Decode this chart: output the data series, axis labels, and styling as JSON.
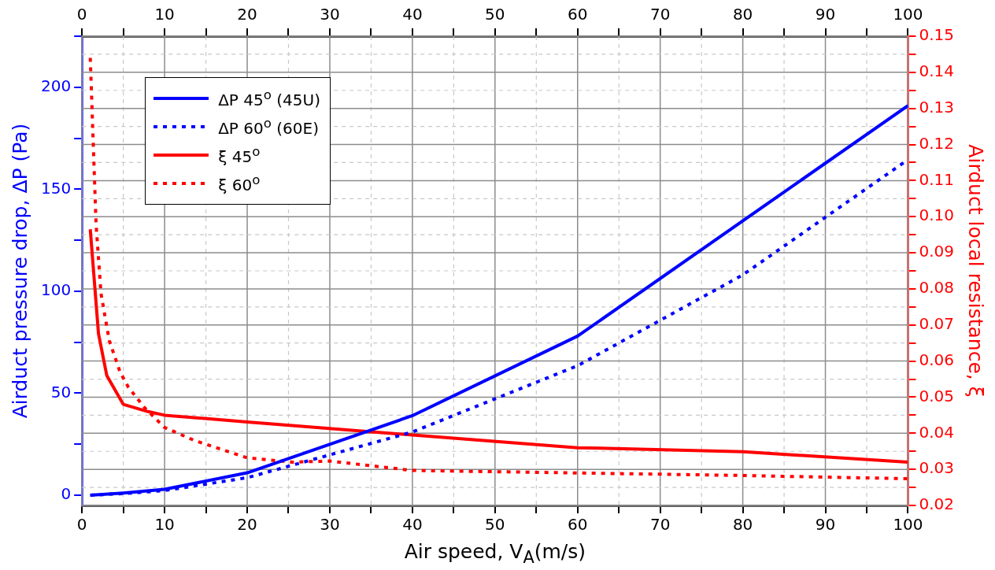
{
  "chart_data": {
    "type": "line",
    "xlabel": "Air speed, V$_{A}$(m/s)",
    "ylabel": "Airduct pressure drop, ΔP (Pa)",
    "y2label": "Airduct local resistance, ξ",
    "xlim": [
      0,
      100
    ],
    "xticks": [
      0,
      {
        "value": 5,
        "label": null
      },
      10,
      {
        "value": 15,
        "label": null
      },
      20,
      {
        "value": 25,
        "label": null
      },
      30,
      {
        "value": 35,
        "label": null
      },
      40,
      {
        "value": 45,
        "label": null
      },
      50,
      {
        "value": 55,
        "label": null
      },
      60,
      {
        "value": 65,
        "label": null
      },
      70,
      {
        "value": 75,
        "label": null
      },
      80,
      {
        "value": 85,
        "label": null
      },
      90,
      {
        "value": 95,
        "label": null
      },
      100
    ],
    "x2lim": [
      0,
      100
    ],
    "x2ticks": [
      0,
      {
        "value": 5,
        "label": null
      },
      10,
      {
        "value": 15,
        "label": null
      },
      20,
      {
        "value": 25,
        "label": null
      },
      30,
      {
        "value": 35,
        "label": null
      },
      40,
      {
        "value": 45,
        "label": null
      },
      50,
      {
        "value": 55,
        "label": null
      },
      60,
      {
        "value": 65,
        "label": null
      },
      70,
      {
        "value": 75,
        "label": null
      },
      80,
      {
        "value": 85,
        "label": null
      },
      90,
      {
        "value": 95,
        "label": null
      },
      100
    ],
    "ylim": [
      -5,
      225
    ],
    "yticks": [
      0,
      {
        "value": 25,
        "label": null
      },
      50,
      {
        "value": 75,
        "label": null
      },
      100,
      {
        "value": 125,
        "label": null
      },
      150,
      {
        "value": 175,
        "label": null
      },
      200,
      {
        "value": 225,
        "label": null
      }
    ],
    "y2lim": [
      0.02,
      0.15
    ],
    "y2ticks": [
      0.02,
      {
        "value": 0.025,
        "label": null
      },
      0.03,
      {
        "value": 0.035,
        "label": null
      },
      0.04,
      {
        "value": 0.045,
        "label": null
      },
      0.05,
      {
        "value": 0.055,
        "label": null
      },
      0.06,
      {
        "value": 0.065,
        "label": null
      },
      0.07,
      {
        "value": 0.075,
        "label": null
      },
      0.08,
      {
        "value": 0.085,
        "label": null
      },
      0.09,
      {
        "value": 0.095,
        "label": null
      },
      {
        "value": 0.1,
        "label": "0.10"
      },
      {
        "value": 0.105,
        "label": null
      },
      0.11,
      {
        "value": 0.115,
        "label": null
      },
      0.12,
      {
        "value": 0.125,
        "label": null
      },
      0.13,
      {
        "value": 0.135,
        "label": null
      },
      0.14,
      {
        "value": 0.145,
        "label": null
      },
      0.15
    ],
    "grid": true,
    "legend": "top left",
    "marker": "none",
    "series": [
      {
        "name": "ΔP 45$^{o}$ (45U)",
        "color": "#0000ff",
        "line_style": "solid",
        "x": [
          1,
          5,
          10,
          20,
          40,
          60,
          100
        ],
        "values": [
          0,
          1.1,
          2.9,
          11,
          39,
          78,
          191
        ]
      },
      {
        "name": "ΔP 60$^{o}$ (60E)",
        "color": "#0000ff",
        "line_style": "dotted",
        "x": [
          1,
          5,
          10,
          20,
          40,
          60,
          80,
          100
        ],
        "values": [
          0,
          0.8,
          2.3,
          8.6,
          31,
          63.5,
          108,
          164.5
        ]
      },
      {
        "name": "ξ 45$^{o}$",
        "color": "#ff0000",
        "line_style": "solid",
        "axis": "y2",
        "x": [
          1,
          2,
          3,
          5,
          8,
          10,
          20,
          40,
          60,
          80,
          100
        ],
        "values": [
          0.0965,
          0.0675,
          0.056,
          0.048,
          0.046,
          0.045,
          0.0431,
          0.0395,
          0.036,
          0.0349,
          0.032
        ]
      },
      {
        "name": "ξ 60$^{o}$",
        "color": "#ff0000",
        "line_style": "dotted",
        "axis": "y2",
        "x": [
          1,
          1.7,
          2.3,
          3.3,
          4.6,
          5.6,
          7.6,
          10,
          13.6,
          20,
          25.4,
          30,
          40,
          60,
          80,
          100
        ],
        "values": [
          0.144,
          0.098,
          0.0787,
          0.0657,
          0.057,
          0.0528,
          0.047,
          0.0416,
          0.038,
          0.0332,
          0.032,
          0.0323,
          0.0297,
          0.029,
          0.0283,
          0.0274
        ]
      }
    ]
  }
}
